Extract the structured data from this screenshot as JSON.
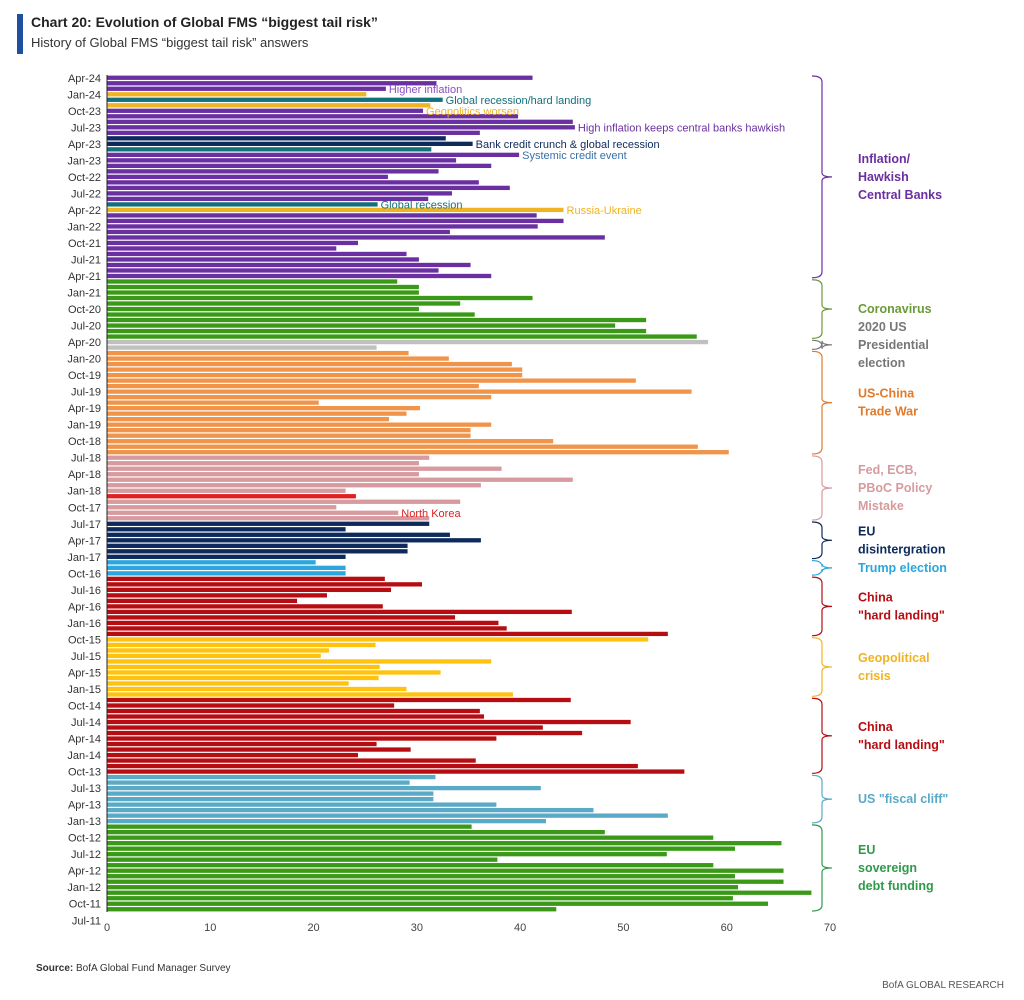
{
  "header": {
    "title": "Chart 20: Evolution of Global FMS “biggest tail risk”",
    "subtitle": "History of Global FMS “biggest tail risk” answers"
  },
  "footer": {
    "source_label": "Source:",
    "source_text": " BofA Global Fund Manager Survey",
    "brand": "BofA GLOBAL RESEARCH"
  },
  "colors": {
    "inflation": "#6a2fa0",
    "geopolitics": "#f0b323",
    "recession": "#12707a",
    "credit": "#0e2a5c",
    "covid": "#3a9a17",
    "election2020": "#c0c0c0",
    "tradewar": "#f0944a",
    "policy": "#d79a9e",
    "northkorea": "#e0201f",
    "eu": "#0e2a5c",
    "trump": "#29a7de",
    "china": "#b60d12",
    "geocrisis": "#ffc20e",
    "fiscal": "#5aa9c7",
    "eudebt": "#3a9a17"
  },
  "chart_data": {
    "type": "bar",
    "orientation": "horizontal",
    "title": "Chart 20: Evolution of Global FMS “biggest tail risk”",
    "subtitle": "History of Global FMS “biggest tail risk” answers",
    "xlabel": "",
    "ylabel": "",
    "xlim": [
      0,
      70
    ],
    "xticks": [
      "0",
      "10",
      "20",
      "30",
      "40",
      "50",
      "60",
      "70"
    ],
    "ytick_labels": [
      "Apr-24",
      "Jan-24",
      "Oct-23",
      "Jul-23",
      "Apr-23",
      "Jan-23",
      "Oct-22",
      "Jul-22",
      "Apr-22",
      "Jan-22",
      "Oct-21",
      "Jul-21",
      "Apr-21",
      "Jan-21",
      "Oct-20",
      "Jul-20",
      "Apr-20",
      "Jan-20",
      "Oct-19",
      "Jul-19",
      "Apr-19",
      "Jan-19",
      "Oct-18",
      "Jul-18",
      "Apr-18",
      "Jan-18",
      "Oct-17",
      "Jul-17",
      "Apr-17",
      "Jan-17",
      "Oct-16",
      "Jul-16",
      "Apr-16",
      "Jan-16",
      "Oct-15",
      "Jul-15",
      "Apr-15",
      "Jan-15",
      "Oct-14",
      "Jul-14",
      "Apr-14",
      "Jan-14",
      "Oct-13",
      "Jul-13",
      "Apr-13",
      "Jan-13",
      "Oct-12",
      "Jul-12",
      "Apr-12",
      "Jan-12",
      "Oct-11",
      "Jul-11"
    ],
    "grid": false,
    "bars": [
      {
        "v": 41.2,
        "c": "inflation"
      },
      {
        "v": 31.9,
        "c": "inflation"
      },
      {
        "v": 27.0,
        "c": "inflation"
      },
      {
        "v": 25.1,
        "c": "geopolitics"
      },
      {
        "v": 32.5,
        "c": "recession"
      },
      {
        "v": 31.3,
        "c": "geopolitics"
      },
      {
        "v": 30.6,
        "c": "inflation"
      },
      {
        "v": 39.8,
        "c": "inflation"
      },
      {
        "v": 45.1,
        "c": "inflation"
      },
      {
        "v": 45.3,
        "c": "inflation"
      },
      {
        "v": 36.1,
        "c": "inflation"
      },
      {
        "v": 32.8,
        "c": "credit"
      },
      {
        "v": 35.4,
        "c": "credit"
      },
      {
        "v": 31.4,
        "c": "recession"
      },
      {
        "v": 39.9,
        "c": "inflation"
      },
      {
        "v": 33.8,
        "c": "inflation"
      },
      {
        "v": 37.2,
        "c": "inflation"
      },
      {
        "v": 32.1,
        "c": "inflation"
      },
      {
        "v": 27.2,
        "c": "inflation"
      },
      {
        "v": 36.0,
        "c": "inflation"
      },
      {
        "v": 39.0,
        "c": "inflation"
      },
      {
        "v": 33.4,
        "c": "inflation"
      },
      {
        "v": 31.1,
        "c": "inflation"
      },
      {
        "v": 26.2,
        "c": "recession"
      },
      {
        "v": 44.2,
        "c": "geopolitics"
      },
      {
        "v": 41.6,
        "c": "inflation"
      },
      {
        "v": 44.2,
        "c": "inflation"
      },
      {
        "v": 41.7,
        "c": "inflation"
      },
      {
        "v": 33.2,
        "c": "inflation"
      },
      {
        "v": 48.2,
        "c": "inflation"
      },
      {
        "v": 24.3,
        "c": "inflation"
      },
      {
        "v": 22.2,
        "c": "inflation"
      },
      {
        "v": 29.0,
        "c": "inflation"
      },
      {
        "v": 30.2,
        "c": "inflation"
      },
      {
        "v": 35.2,
        "c": "inflation"
      },
      {
        "v": 32.1,
        "c": "inflation"
      },
      {
        "v": 37.2,
        "c": "inflation"
      },
      {
        "v": 28.1,
        "c": "covid"
      },
      {
        "v": 30.2,
        "c": "covid"
      },
      {
        "v": 30.2,
        "c": "covid"
      },
      {
        "v": 41.2,
        "c": "covid"
      },
      {
        "v": 34.2,
        "c": "covid"
      },
      {
        "v": 30.2,
        "c": "covid"
      },
      {
        "v": 35.6,
        "c": "covid"
      },
      {
        "v": 52.2,
        "c": "covid"
      },
      {
        "v": 49.2,
        "c": "covid"
      },
      {
        "v": 52.2,
        "c": "covid"
      },
      {
        "v": 57.1,
        "c": "covid"
      },
      {
        "v": 58.2,
        "c": "election2020"
      },
      {
        "v": 26.1,
        "c": "election2020"
      },
      {
        "v": 29.2,
        "c": "tradewar"
      },
      {
        "v": 33.1,
        "c": "tradewar"
      },
      {
        "v": 39.2,
        "c": "tradewar"
      },
      {
        "v": 40.2,
        "c": "tradewar"
      },
      {
        "v": 40.2,
        "c": "tradewar"
      },
      {
        "v": 51.2,
        "c": "tradewar"
      },
      {
        "v": 36.0,
        "c": "tradewar"
      },
      {
        "v": 56.6,
        "c": "tradewar"
      },
      {
        "v": 37.2,
        "c": "tradewar"
      },
      {
        "v": 20.5,
        "c": "tradewar"
      },
      {
        "v": 30.3,
        "c": "tradewar"
      },
      {
        "v": 29.0,
        "c": "tradewar"
      },
      {
        "v": 27.3,
        "c": "tradewar"
      },
      {
        "v": 37.2,
        "c": "tradewar"
      },
      {
        "v": 35.2,
        "c": "tradewar"
      },
      {
        "v": 35.2,
        "c": "tradewar"
      },
      {
        "v": 43.2,
        "c": "tradewar"
      },
      {
        "v": 57.2,
        "c": "tradewar"
      },
      {
        "v": 60.2,
        "c": "tradewar"
      },
      {
        "v": 31.2,
        "c": "policy"
      },
      {
        "v": 30.2,
        "c": "policy"
      },
      {
        "v": 38.2,
        "c": "policy"
      },
      {
        "v": 30.2,
        "c": "policy"
      },
      {
        "v": 45.1,
        "c": "policy"
      },
      {
        "v": 36.2,
        "c": "policy"
      },
      {
        "v": 23.1,
        "c": "policy"
      },
      {
        "v": 24.1,
        "c": "northkorea"
      },
      {
        "v": 34.2,
        "c": "policy"
      },
      {
        "v": 22.2,
        "c": "policy"
      },
      {
        "v": 28.2,
        "c": "policy"
      },
      {
        "v": 31.2,
        "c": "policy"
      },
      {
        "v": 31.2,
        "c": "eu"
      },
      {
        "v": 23.1,
        "c": "eu"
      },
      {
        "v": 33.2,
        "c": "eu"
      },
      {
        "v": 36.2,
        "c": "eu"
      },
      {
        "v": 29.1,
        "c": "eu"
      },
      {
        "v": 29.1,
        "c": "eu"
      },
      {
        "v": 23.1,
        "c": "eu"
      },
      {
        "v": 20.2,
        "c": "trump"
      },
      {
        "v": 23.1,
        "c": "trump"
      },
      {
        "v": 23.1,
        "c": "trump"
      },
      {
        "v": 26.9,
        "c": "china"
      },
      {
        "v": 30.5,
        "c": "china"
      },
      {
        "v": 27.5,
        "c": "china"
      },
      {
        "v": 21.3,
        "c": "china"
      },
      {
        "v": 18.4,
        "c": "china"
      },
      {
        "v": 26.7,
        "c": "china"
      },
      {
        "v": 45.0,
        "c": "china"
      },
      {
        "v": 33.7,
        "c": "china"
      },
      {
        "v": 37.9,
        "c": "china"
      },
      {
        "v": 38.7,
        "c": "china"
      },
      {
        "v": 54.3,
        "c": "china"
      },
      {
        "v": 52.4,
        "c": "geocrisis"
      },
      {
        "v": 26.0,
        "c": "geocrisis"
      },
      {
        "v": 21.5,
        "c": "geocrisis"
      },
      {
        "v": 20.7,
        "c": "geocrisis"
      },
      {
        "v": 37.2,
        "c": "geocrisis"
      },
      {
        "v": 26.4,
        "c": "geocrisis"
      },
      {
        "v": 32.3,
        "c": "geocrisis"
      },
      {
        "v": 26.3,
        "c": "geocrisis"
      },
      {
        "v": 23.4,
        "c": "geocrisis"
      },
      {
        "v": 29.0,
        "c": "geocrisis"
      },
      {
        "v": 39.3,
        "c": "geocrisis"
      },
      {
        "v": 44.9,
        "c": "china"
      },
      {
        "v": 27.8,
        "c": "china"
      },
      {
        "v": 36.1,
        "c": "china"
      },
      {
        "v": 36.5,
        "c": "china"
      },
      {
        "v": 50.7,
        "c": "china"
      },
      {
        "v": 42.2,
        "c": "china"
      },
      {
        "v": 46.0,
        "c": "china"
      },
      {
        "v": 37.7,
        "c": "china"
      },
      {
        "v": 26.1,
        "c": "china"
      },
      {
        "v": 29.4,
        "c": "china"
      },
      {
        "v": 24.3,
        "c": "china"
      },
      {
        "v": 35.7,
        "c": "china"
      },
      {
        "v": 51.4,
        "c": "china"
      },
      {
        "v": 55.9,
        "c": "china"
      },
      {
        "v": 31.8,
        "c": "fiscal"
      },
      {
        "v": 29.3,
        "c": "fiscal"
      },
      {
        "v": 42.0,
        "c": "fiscal"
      },
      {
        "v": 31.6,
        "c": "fiscal"
      },
      {
        "v": 31.6,
        "c": "fiscal"
      },
      {
        "v": 37.7,
        "c": "fiscal"
      },
      {
        "v": 47.1,
        "c": "fiscal"
      },
      {
        "v": 54.3,
        "c": "fiscal"
      },
      {
        "v": 42.5,
        "c": "fiscal"
      },
      {
        "v": 35.3,
        "c": "eudebt"
      },
      {
        "v": 48.2,
        "c": "eudebt"
      },
      {
        "v": 58.7,
        "c": "eudebt"
      },
      {
        "v": 65.3,
        "c": "eudebt"
      },
      {
        "v": 60.8,
        "c": "eudebt"
      },
      {
        "v": 54.2,
        "c": "eudebt"
      },
      {
        "v": 37.8,
        "c": "eudebt"
      },
      {
        "v": 58.7,
        "c": "eudebt"
      },
      {
        "v": 65.5,
        "c": "eudebt"
      },
      {
        "v": 60.8,
        "c": "eudebt"
      },
      {
        "v": 65.5,
        "c": "eudebt"
      },
      {
        "v": 61.1,
        "c": "eudebt"
      },
      {
        "v": 68.2,
        "c": "eudebt"
      },
      {
        "v": 60.6,
        "c": "eudebt"
      },
      {
        "v": 64.0,
        "c": "eudebt"
      },
      {
        "v": 43.5,
        "c": "eudebt"
      }
    ],
    "bar_annotations": [
      {
        "row": 2,
        "text": "Higher inflation",
        "color": "#8a4fbf"
      },
      {
        "row": 4,
        "text": "Global recession/hard landing",
        "color": "#12707a"
      },
      {
        "row": 6,
        "text": "Geopolitics worsen",
        "color": "#f0b323"
      },
      {
        "row": 9,
        "text": "High inflation keeps central banks hawkish",
        "color": "#6a2fa0"
      },
      {
        "row": 12,
        "text": "Bank credit crunch & global recession",
        "color": "#0e2a5c"
      },
      {
        "row": 14,
        "text": "Systemic credit event",
        "color": "#3a6fa8"
      },
      {
        "row": 23,
        "text": "Global recession",
        "color": "#12707a"
      },
      {
        "row": 24,
        "text": "Russia-Ukraine",
        "color": "#f0b323"
      },
      {
        "row": 79,
        "text": "North Korea",
        "color": "#e0201f"
      }
    ],
    "groups": [
      {
        "label": "Inflation/\nHawkish\nCentral Banks",
        "from": 0,
        "to": 36,
        "color": "#6a2fa0"
      },
      {
        "label": "Coronavirus",
        "from": 37,
        "to": 47,
        "color": "#6b9a3a"
      },
      {
        "label": "2020 US\nPresidential\nelection",
        "from": 48,
        "to": 49,
        "color": "#777777"
      },
      {
        "label": "US-China\nTrade War",
        "from": 50,
        "to": 68,
        "color": "#e07a2c"
      },
      {
        "label": "Fed, ECB,\nPBoC Policy\nMistake",
        "from": 69,
        "to": 80,
        "color": "#d79a9e"
      },
      {
        "label": "EU\ndisintergration",
        "from": 81,
        "to": 87,
        "color": "#0e2a5c"
      },
      {
        "label": "Trump election",
        "from": 88,
        "to": 90,
        "color": "#29a7de"
      },
      {
        "label": "China\n\"hard landing\"",
        "from": 91,
        "to": 101,
        "color": "#b60d12"
      },
      {
        "label": "Geopolitical\ncrisis",
        "from": 102,
        "to": 112,
        "color": "#f0b323"
      },
      {
        "label": "China\n\"hard landing\"",
        "from": 113,
        "to": 126,
        "color": "#b60d12"
      },
      {
        "label": "US \"fiscal cliff\"",
        "from": 127,
        "to": 135,
        "color": "#5aa9c7"
      },
      {
        "label": "EU\nsovereign\ndebt funding",
        "from": 136,
        "to": 151,
        "color": "#2f9a4a"
      }
    ]
  }
}
